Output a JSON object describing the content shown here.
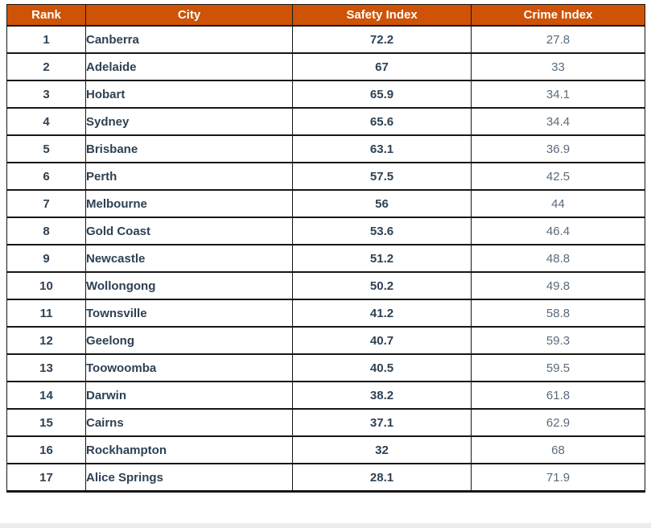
{
  "accent_color": "#CE5306",
  "grid_color": "#161616",
  "text_dark_color": "#2E4154",
  "text_light_color": "#5A6B7C",
  "table": {
    "columns": [
      "Rank",
      "City",
      "Safety Index",
      "Crime Index"
    ],
    "rows": [
      {
        "rank": "1",
        "city": "Canberra",
        "safety": "72.2",
        "crime": "27.8"
      },
      {
        "rank": "2",
        "city": "Adelaide",
        "safety": "67",
        "crime": "33"
      },
      {
        "rank": "3",
        "city": "Hobart",
        "safety": "65.9",
        "crime": "34.1"
      },
      {
        "rank": "4",
        "city": "Sydney",
        "safety": "65.6",
        "crime": "34.4"
      },
      {
        "rank": "5",
        "city": "Brisbane",
        "safety": "63.1",
        "crime": "36.9"
      },
      {
        "rank": "6",
        "city": "Perth",
        "safety": "57.5",
        "crime": "42.5"
      },
      {
        "rank": "7",
        "city": "Melbourne",
        "safety": "56",
        "crime": "44"
      },
      {
        "rank": "8",
        "city": "Gold Coast",
        "safety": "53.6",
        "crime": "46.4"
      },
      {
        "rank": "9",
        "city": "Newcastle",
        "safety": "51.2",
        "crime": "48.8"
      },
      {
        "rank": "10",
        "city": "Wollongong",
        "safety": "50.2",
        "crime": "49.8"
      },
      {
        "rank": "11",
        "city": "Townsville",
        "safety": "41.2",
        "crime": "58.8"
      },
      {
        "rank": "12",
        "city": "Geelong",
        "safety": "40.7",
        "crime": "59.3"
      },
      {
        "rank": "13",
        "city": "Toowoomba",
        "safety": "40.5",
        "crime": "59.5"
      },
      {
        "rank": "14",
        "city": "Darwin",
        "safety": "38.2",
        "crime": "61.8"
      },
      {
        "rank": "15",
        "city": "Cairns",
        "safety": "37.1",
        "crime": "62.9"
      },
      {
        "rank": "16",
        "city": "Rockhampton",
        "safety": "32",
        "crime": "68"
      },
      {
        "rank": "17",
        "city": "Alice Springs",
        "safety": "28.1",
        "crime": "71.9"
      }
    ]
  },
  "chart_data": {
    "type": "table",
    "title": "",
    "columns": [
      "Rank",
      "City",
      "Safety Index",
      "Crime Index"
    ],
    "rows": [
      [
        1,
        "Canberra",
        72.2,
        27.8
      ],
      [
        2,
        "Adelaide",
        67,
        33
      ],
      [
        3,
        "Hobart",
        65.9,
        34.1
      ],
      [
        4,
        "Sydney",
        65.6,
        34.4
      ],
      [
        5,
        "Brisbane",
        63.1,
        36.9
      ],
      [
        6,
        "Perth",
        57.5,
        42.5
      ],
      [
        7,
        "Melbourne",
        56,
        44
      ],
      [
        8,
        "Gold Coast",
        53.6,
        46.4
      ],
      [
        9,
        "Newcastle",
        51.2,
        48.8
      ],
      [
        10,
        "Wollongong",
        50.2,
        49.8
      ],
      [
        11,
        "Townsville",
        41.2,
        58.8
      ],
      [
        12,
        "Geelong",
        40.7,
        59.3
      ],
      [
        13,
        "Toowoomba",
        40.5,
        59.5
      ],
      [
        14,
        "Darwin",
        38.2,
        61.8
      ],
      [
        15,
        "Cairns",
        37.1,
        62.9
      ],
      [
        16,
        "Rockhampton",
        32,
        68
      ],
      [
        17,
        "Alice Springs",
        28.1,
        71.9
      ]
    ]
  }
}
